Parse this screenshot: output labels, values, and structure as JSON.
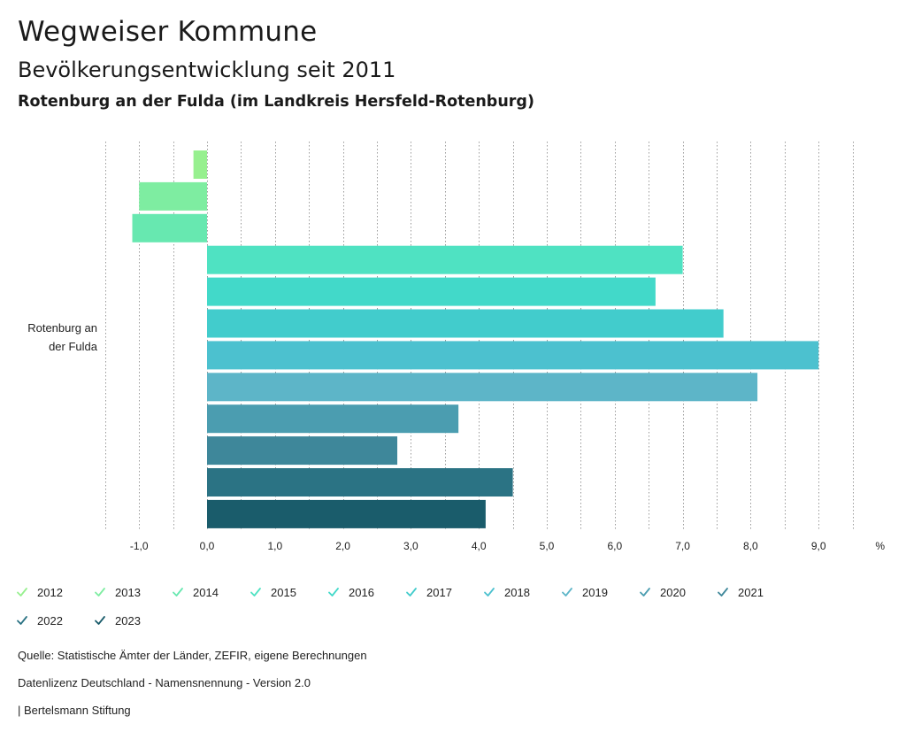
{
  "header": {
    "title": "Wegweiser Kommune",
    "subtitle": "Bevölkerungsentwicklung seit 2011",
    "region": "Rotenburg an der Fulda (im Landkreis Hersfeld-Rotenburg)"
  },
  "chart_data": {
    "type": "bar",
    "orientation": "horizontal",
    "category": [
      "Rotenburg an",
      "der Fulda"
    ],
    "unit_label": "%",
    "xlim": [
      -1.5,
      10.0
    ],
    "xticks": [
      "-1,0",
      "0,0",
      "1,0",
      "2,0",
      "3,0",
      "4,0",
      "5,0",
      "6,0",
      "7,0",
      "8,0",
      "9,0"
    ],
    "xtick_values": [
      -1,
      0,
      1,
      2,
      3,
      4,
      5,
      6,
      7,
      8,
      9
    ],
    "series": [
      {
        "name": "2012",
        "value": -0.2,
        "color": "#97f08f"
      },
      {
        "name": "2013",
        "value": -1.0,
        "color": "#7eeda1"
      },
      {
        "name": "2014",
        "value": -1.1,
        "color": "#67e8b0"
      },
      {
        "name": "2015",
        "value": 7.0,
        "color": "#4fe2c2"
      },
      {
        "name": "2016",
        "value": 6.6,
        "color": "#42d9c9"
      },
      {
        "name": "2017",
        "value": 7.6,
        "color": "#42cccc"
      },
      {
        "name": "2018",
        "value": 9.0,
        "color": "#4cc1cf"
      },
      {
        "name": "2019",
        "value": 8.1,
        "color": "#5db5c8"
      },
      {
        "name": "2020",
        "value": 3.7,
        "color": "#4b9db0"
      },
      {
        "name": "2021",
        "value": 2.8,
        "color": "#3e879a"
      },
      {
        "name": "2022",
        "value": 4.5,
        "color": "#2b7384"
      },
      {
        "name": "2023",
        "value": 4.1,
        "color": "#1a5c6b"
      }
    ]
  },
  "footer": {
    "source": "Quelle: Statistische Ämter der Länder, ZEFIR, eigene Berechnungen",
    "license": "Datenlizenz Deutschland - Namensnennung - Version 2.0",
    "brand": "| Bertelsmann Stiftung"
  }
}
